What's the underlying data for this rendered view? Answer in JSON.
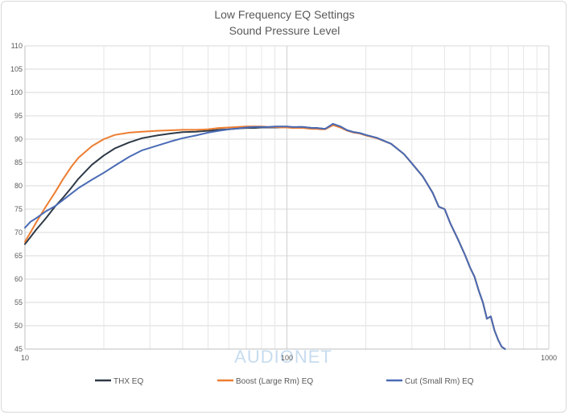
{
  "chart_data": {
    "type": "line",
    "title": "Low Frequency EQ Settings",
    "subtitle": "Sound Pressure Level",
    "x_scale": "log",
    "xlim": [
      10,
      1000
    ],
    "ylim": [
      45,
      110
    ],
    "x_ticks": [
      "10",
      "100",
      "1000"
    ],
    "y_ticks": [
      "45",
      "50",
      "55",
      "60",
      "65",
      "70",
      "75",
      "80",
      "85",
      "90",
      "95",
      "100",
      "105",
      "110"
    ],
    "grid": true,
    "legend_position": "bottom",
    "watermark": "AUDIONET",
    "series": [
      {
        "name": "THX EQ",
        "color": "#2e3a47",
        "x": [
          10,
          10.5,
          11,
          12,
          13,
          14,
          15,
          16,
          18,
          20,
          22,
          25,
          28,
          32,
          36,
          40,
          45,
          50,
          55,
          60,
          65,
          70,
          75,
          80,
          85,
          90,
          95,
          100,
          105,
          110,
          115,
          120,
          125,
          130,
          135,
          140,
          150,
          160,
          170,
          180,
          190,
          200,
          220,
          250,
          280,
          300,
          330,
          360,
          380,
          400,
          420,
          450,
          480,
          500,
          520,
          540,
          560,
          580,
          600,
          620,
          640,
          660,
          680
        ],
        "y": [
          67.5,
          69,
          70.5,
          73,
          75.5,
          77.5,
          79.5,
          81.5,
          84.5,
          86.5,
          88,
          89.3,
          90.2,
          90.8,
          91.2,
          91.5,
          91.6,
          91.8,
          92,
          92.1,
          92.3,
          92.4,
          92.4,
          92.5,
          92.5,
          92.5,
          92.5,
          92.6,
          92.5,
          92.6,
          92.6,
          92.5,
          92.4,
          92.4,
          92.3,
          92.2,
          93.2,
          92.7,
          91.9,
          91.5,
          91.3,
          90.9,
          90.3,
          89,
          86.8,
          84.8,
          82,
          78.5,
          75.5,
          75,
          72,
          68.5,
          65,
          62.5,
          60.5,
          57.5,
          55,
          51.5,
          52,
          49,
          47,
          45.5,
          45
        ]
      },
      {
        "name": "Boost (Large Rm) EQ",
        "color": "#ed7d31",
        "x": [
          10,
          10.5,
          11,
          12,
          13,
          14,
          15,
          16,
          18,
          20,
          22,
          25,
          28,
          32,
          36,
          40,
          45,
          50,
          55,
          60,
          65,
          70,
          75,
          80,
          85,
          90,
          95,
          100,
          105,
          110,
          115,
          120,
          125,
          130,
          135,
          140,
          150,
          160,
          170,
          180,
          190,
          200,
          220,
          250,
          280,
          300,
          330,
          360,
          380,
          400,
          420,
          450,
          480,
          500,
          520,
          540,
          560,
          580,
          600,
          620,
          640,
          660,
          680
        ],
        "y": [
          68,
          70,
          72,
          75.5,
          78.5,
          81.5,
          84,
          86,
          88.5,
          90,
          90.9,
          91.4,
          91.6,
          91.8,
          91.9,
          92,
          92,
          92.1,
          92.4,
          92.5,
          92.6,
          92.7,
          92.7,
          92.7,
          92.6,
          92.6,
          92.5,
          92.5,
          92.4,
          92.4,
          92.4,
          92.3,
          92.2,
          92.2,
          92.1,
          92.1,
          93,
          92.5,
          91.8,
          91.4,
          91.2,
          90.8,
          90.2,
          89,
          86.8,
          84.8,
          82,
          78.5,
          75.5,
          75,
          72,
          68.5,
          65,
          62.5,
          60.5,
          57.5,
          55,
          51.5,
          52,
          49,
          47,
          45.5,
          45
        ]
      },
      {
        "name": "Cut (Small Rm) EQ",
        "color": "#4a6bb5",
        "x": [
          10,
          10.5,
          11,
          12,
          13,
          14,
          15,
          16,
          18,
          20,
          22,
          25,
          28,
          32,
          36,
          40,
          45,
          50,
          55,
          60,
          65,
          70,
          75,
          80,
          85,
          90,
          95,
          100,
          105,
          110,
          115,
          120,
          125,
          130,
          135,
          140,
          150,
          160,
          170,
          180,
          190,
          200,
          220,
          250,
          280,
          300,
          330,
          360,
          380,
          400,
          420,
          450,
          480,
          500,
          520,
          540,
          560,
          580,
          600,
          620,
          640,
          660,
          680
        ],
        "y": [
          71,
          72.3,
          73,
          74.5,
          75.6,
          77,
          78.3,
          79.5,
          81.3,
          82.8,
          84.3,
          86.2,
          87.6,
          88.6,
          89.5,
          90.2,
          90.8,
          91.4,
          91.8,
          92.1,
          92.3,
          92.5,
          92.6,
          92.6,
          92.6,
          92.7,
          92.7,
          92.7,
          92.6,
          92.6,
          92.6,
          92.5,
          92.4,
          92.4,
          92.3,
          92.2,
          93.3,
          92.7,
          91.9,
          91.5,
          91.3,
          90.9,
          90.3,
          89,
          86.8,
          84.8,
          82,
          78.5,
          75.5,
          75,
          72,
          68.5,
          65,
          62.5,
          60.5,
          57.5,
          55,
          51.5,
          52,
          49,
          47,
          45.5,
          45
        ]
      }
    ]
  }
}
